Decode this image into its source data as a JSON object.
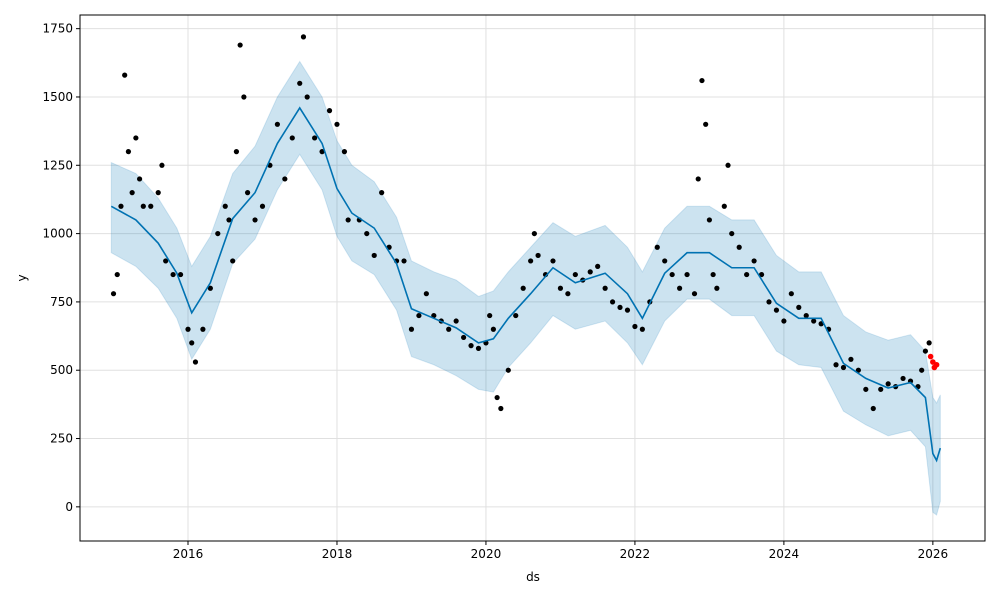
{
  "chart_data": {
    "type": "line",
    "title": "",
    "xlabel": "ds",
    "ylabel": "y",
    "xlim": [
      2014.55,
      2026.7
    ],
    "ylim": [
      -125,
      1800
    ],
    "grid": true,
    "x_ticks": [
      2016,
      2018,
      2020,
      2022,
      2024,
      2026
    ],
    "x_tick_labels": [
      "2016",
      "2018",
      "2020",
      "2022",
      "2024",
      "2026"
    ],
    "y_ticks": [
      0,
      250,
      500,
      750,
      1000,
      1250,
      1500,
      1750
    ],
    "y_tick_labels": [
      "0",
      "250",
      "500",
      "750",
      "1000",
      "1250",
      "1500",
      "1750"
    ],
    "colors": {
      "forecast": "#0072B2",
      "band": "#0072B2",
      "observed": "#000000",
      "recent": "#ff0000"
    },
    "forecast": {
      "x": [
        2014.97,
        2015.3,
        2015.6,
        2015.85,
        2016.05,
        2016.3,
        2016.6,
        2016.9,
        2017.2,
        2017.5,
        2017.8,
        2018.0,
        2018.2,
        2018.5,
        2018.8,
        2019.0,
        2019.3,
        2019.6,
        2019.9,
        2020.1,
        2020.3,
        2020.6,
        2020.9,
        2021.2,
        2021.6,
        2021.9,
        2022.1,
        2022.4,
        2022.7,
        2023.0,
        2023.3,
        2023.6,
        2023.9,
        2024.2,
        2024.5,
        2024.8,
        2025.1,
        2025.4,
        2025.7,
        2025.9,
        2026.0,
        2026.05,
        2026.1
      ],
      "yhat": [
        1100,
        1050,
        965,
        855,
        710,
        820,
        1055,
        1150,
        1330,
        1460,
        1330,
        1165,
        1075,
        1020,
        890,
        725,
        690,
        655,
        600,
        615,
        690,
        780,
        875,
        820,
        855,
        780,
        690,
        855,
        930,
        930,
        875,
        875,
        745,
        690,
        690,
        525,
        470,
        435,
        455,
        400,
        195,
        170,
        215
      ],
      "yhat_lower": [
        930,
        880,
        800,
        690,
        540,
        650,
        890,
        980,
        1160,
        1290,
        1160,
        990,
        900,
        850,
        720,
        550,
        520,
        480,
        430,
        420,
        510,
        600,
        700,
        650,
        680,
        600,
        520,
        680,
        760,
        760,
        700,
        700,
        570,
        520,
        510,
        350,
        300,
        260,
        280,
        220,
        -20,
        -30,
        20
      ],
      "yhat_upper": [
        1260,
        1220,
        1130,
        1020,
        880,
        990,
        1220,
        1320,
        1500,
        1630,
        1500,
        1340,
        1250,
        1190,
        1060,
        900,
        860,
        830,
        770,
        790,
        860,
        950,
        1040,
        990,
        1030,
        950,
        860,
        1020,
        1100,
        1100,
        1050,
        1050,
        920,
        860,
        860,
        700,
        640,
        610,
        630,
        570,
        400,
        380,
        410
      ]
    },
    "observed": {
      "x": [
        2015.0,
        2015.05,
        2015.1,
        2015.15,
        2015.2,
        2015.25,
        2015.3,
        2015.35,
        2015.4,
        2015.5,
        2015.6,
        2015.65,
        2015.7,
        2015.8,
        2015.9,
        2016.0,
        2016.05,
        2016.1,
        2016.2,
        2016.3,
        2016.4,
        2016.5,
        2016.55,
        2016.6,
        2016.65,
        2016.7,
        2016.75,
        2016.8,
        2016.9,
        2017.0,
        2017.1,
        2017.2,
        2017.3,
        2017.4,
        2017.5,
        2017.55,
        2017.6,
        2017.7,
        2017.8,
        2017.9,
        2018.0,
        2018.1,
        2018.15,
        2018.3,
        2018.4,
        2018.5,
        2018.6,
        2018.7,
        2018.8,
        2018.9,
        2019.0,
        2019.1,
        2019.2,
        2019.3,
        2019.4,
        2019.5,
        2019.6,
        2019.7,
        2019.8,
        2019.9,
        2020.0,
        2020.05,
        2020.1,
        2020.15,
        2020.2,
        2020.3,
        2020.4,
        2020.5,
        2020.6,
        2020.65,
        2020.7,
        2020.8,
        2020.9,
        2021.0,
        2021.1,
        2021.2,
        2021.3,
        2021.4,
        2021.5,
        2021.6,
        2021.7,
        2021.8,
        2021.9,
        2022.0,
        2022.1,
        2022.2,
        2022.3,
        2022.4,
        2022.5,
        2022.6,
        2022.7,
        2022.8,
        2022.85,
        2022.9,
        2022.95,
        2023.0,
        2023.05,
        2023.1,
        2023.2,
        2023.25,
        2023.3,
        2023.4,
        2023.5,
        2023.6,
        2023.7,
        2023.8,
        2023.9,
        2024.0,
        2024.1,
        2024.2,
        2024.3,
        2024.4,
        2024.5,
        2024.6,
        2024.7,
        2024.8,
        2024.9,
        2025.0,
        2025.1,
        2025.2,
        2025.3,
        2025.4,
        2025.5,
        2025.6,
        2025.7,
        2025.8,
        2025.85,
        2025.9,
        2025.95
      ],
      "y": [
        780,
        850,
        1100,
        1580,
        1300,
        1150,
        1350,
        1200,
        1100,
        1100,
        1150,
        1250,
        900,
        850,
        850,
        650,
        600,
        530,
        650,
        800,
        1000,
        1100,
        1050,
        900,
        1300,
        1690,
        1500,
        1150,
        1050,
        1100,
        1250,
        1400,
        1200,
        1350,
        1550,
        1720,
        1500,
        1350,
        1300,
        1450,
        1400,
        1300,
        1050,
        1050,
        1000,
        920,
        1150,
        950,
        900,
        900,
        650,
        700,
        780,
        700,
        680,
        650,
        680,
        620,
        590,
        580,
        600,
        700,
        650,
        400,
        360,
        500,
        700,
        800,
        900,
        1000,
        920,
        850,
        900,
        800,
        780,
        850,
        830,
        860,
        880,
        800,
        750,
        730,
        720,
        660,
        650,
        750,
        950,
        900,
        850,
        800,
        850,
        780,
        1200,
        1560,
        1400,
        1050,
        850,
        800,
        1100,
        1250,
        1000,
        950,
        850,
        900,
        850,
        750,
        720,
        680,
        780,
        730,
        700,
        680,
        670,
        650,
        520,
        510,
        540,
        500,
        430,
        360,
        430,
        450,
        440,
        470,
        460,
        440,
        500,
        570,
        600
      ]
    },
    "recent": {
      "x": [
        2025.97,
        2026.0,
        2026.02,
        2026.05
      ],
      "y": [
        550,
        530,
        510,
        520
      ]
    }
  }
}
